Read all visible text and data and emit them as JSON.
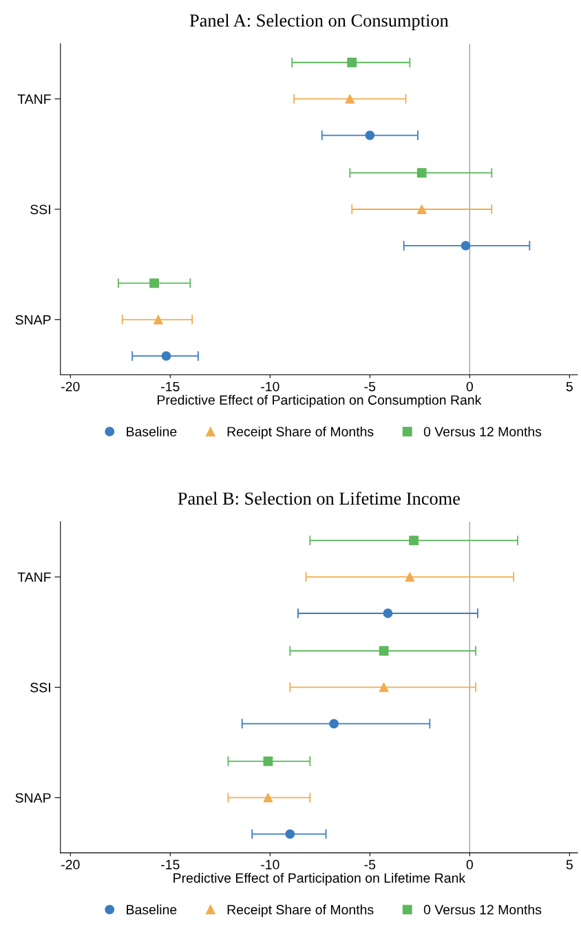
{
  "chart_data": [
    {
      "type": "scatter",
      "title": "Panel A: Selection on Consumption",
      "xlabel": "Predictive Effect of Participation on Consumption Rank",
      "categories": [
        "TANF",
        "SSI",
        "SNAP"
      ],
      "orientation": "horizontal",
      "xlim": [
        -20.5,
        5.4
      ],
      "xticks": [
        -20,
        -15,
        -10,
        -5,
        0,
        5
      ],
      "legend": "bottom",
      "grid": false,
      "ref_lines": [
        {
          "axis": "x",
          "value": 0,
          "color": "#a0a0a0",
          "line_style": "solid"
        }
      ],
      "series": [
        {
          "name": "Baseline",
          "color": "#3a7dbf",
          "marker": "circle",
          "values": [
            -5.0,
            -0.2,
            -15.2
          ],
          "errors": [
            [
              -7.4,
              -2.6
            ],
            [
              -3.3,
              3.0
            ],
            [
              -16.9,
              -13.6
            ]
          ]
        },
        {
          "name": "Receipt Share of Months",
          "color": "#f0ad4e",
          "marker": "triangle",
          "values": [
            -6.0,
            -2.4,
            -15.6
          ],
          "errors": [
            [
              -8.8,
              -3.2
            ],
            [
              -5.9,
              1.1
            ],
            [
              -17.4,
              -13.9
            ]
          ]
        },
        {
          "name": "0 Versus 12 Months",
          "color": "#5cb85c",
          "marker": "square",
          "values": [
            -5.9,
            -2.4,
            -15.8
          ],
          "errors": [
            [
              -8.9,
              -3.0
            ],
            [
              -6.0,
              1.1
            ],
            [
              -17.6,
              -14.0
            ]
          ]
        }
      ]
    },
    {
      "type": "scatter",
      "title": "Panel B: Selection on Lifetime Income",
      "xlabel": "Predictive Effect of Participation on Lifetime Rank",
      "categories": [
        "TANF",
        "SSI",
        "SNAP"
      ],
      "orientation": "horizontal",
      "xlim": [
        -20.5,
        5.4
      ],
      "xticks": [
        -20,
        -15,
        -10,
        -5,
        0,
        5
      ],
      "legend": "bottom",
      "grid": false,
      "ref_lines": [
        {
          "axis": "x",
          "value": 0,
          "color": "#a0a0a0",
          "line_style": "solid"
        }
      ],
      "series": [
        {
          "name": "Baseline",
          "color": "#3a7dbf",
          "marker": "circle",
          "values": [
            -4.1,
            -6.8,
            -9.0
          ],
          "errors": [
            [
              -8.6,
              0.4
            ],
            [
              -11.4,
              -2.0
            ],
            [
              -10.9,
              -7.2
            ]
          ]
        },
        {
          "name": "Receipt Share of Months",
          "color": "#f0ad4e",
          "marker": "triangle",
          "values": [
            -3.0,
            -4.3,
            -10.1
          ],
          "errors": [
            [
              -8.2,
              2.2
            ],
            [
              -9.0,
              0.3
            ],
            [
              -12.1,
              -8.0
            ]
          ]
        },
        {
          "name": "0 Versus 12 Months",
          "color": "#5cb85c",
          "marker": "square",
          "values": [
            -2.8,
            -4.3,
            -10.1
          ],
          "errors": [
            [
              -8.0,
              2.4
            ],
            [
              -9.0,
              0.3
            ],
            [
              -12.1,
              -8.0
            ]
          ]
        }
      ]
    }
  ]
}
